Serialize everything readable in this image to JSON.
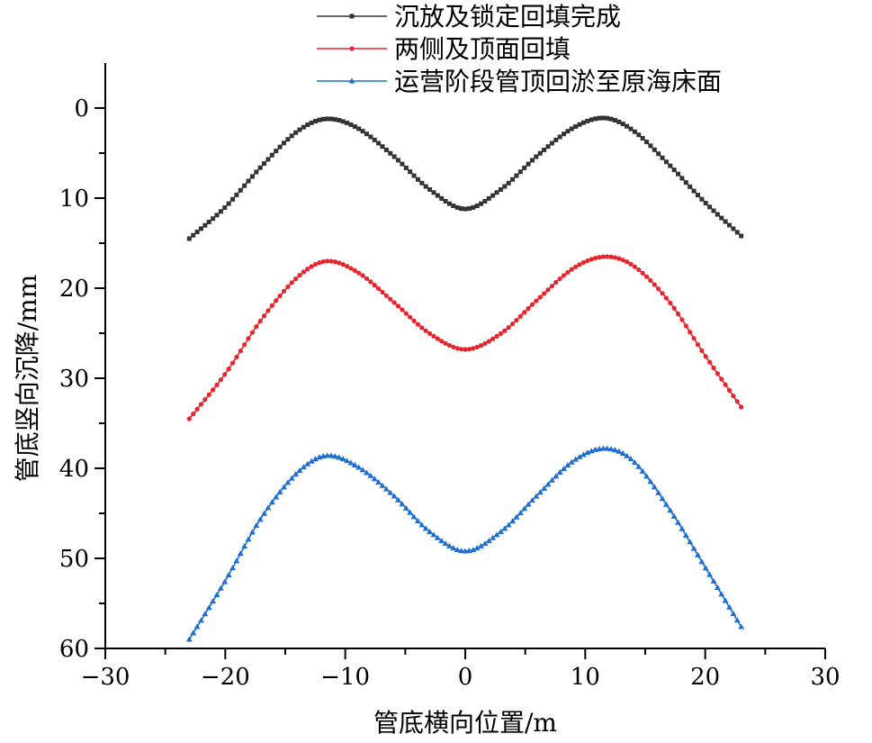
{
  "chart_data": {
    "type": "line",
    "xlabel": "管底横向位置/m",
    "ylabel": "管底竖向沉降/mm",
    "xlim": [
      -30,
      30
    ],
    "ylim": [
      60,
      -5
    ],
    "y_inverted": true,
    "xticks": [
      -30,
      -20,
      -10,
      0,
      10,
      20,
      30
    ],
    "xtick_labels": [
      "−30",
      "−20",
      "−10",
      "0",
      "10",
      "20",
      "30"
    ],
    "yticks": [
      0,
      10,
      20,
      30,
      40,
      50,
      60
    ],
    "ytick_labels": [
      "0",
      "10",
      "20",
      "30",
      "40",
      "50",
      "60"
    ],
    "grid": false,
    "legend_position": "top-right",
    "x": [
      -23,
      -20,
      -17,
      -14,
      -11.6,
      -9,
      -6,
      -3,
      0,
      3,
      6,
      9,
      11.6,
      14,
      17,
      20,
      23
    ],
    "series": [
      {
        "name": "沉放及锁定回填完成",
        "color": "#333333",
        "marker": "square",
        "values": [
          14.5,
          11.0,
          6.5,
          2.6,
          1.2,
          2.2,
          5.3,
          9.0,
          11.2,
          9.0,
          5.3,
          2.2,
          1.1,
          2.5,
          6.3,
          10.5,
          14.2
        ]
      },
      {
        "name": "两侧及顶面回填",
        "color": "#e8242c",
        "marker": "circle",
        "values": [
          34.5,
          29.5,
          23.5,
          18.8,
          17.0,
          18.2,
          21.5,
          25.0,
          26.8,
          25.0,
          21.3,
          17.8,
          16.5,
          17.5,
          21.5,
          27.5,
          33.2
        ]
      },
      {
        "name": "运营阶段管顶回淤至原海床面",
        "color": "#1f6fd1",
        "marker": "triangle",
        "values": [
          59.0,
          52.5,
          45.5,
          40.5,
          38.6,
          39.8,
          43.0,
          47.0,
          49.2,
          47.0,
          43.0,
          39.2,
          37.8,
          39.2,
          44.5,
          51.0,
          57.6
        ]
      }
    ]
  }
}
